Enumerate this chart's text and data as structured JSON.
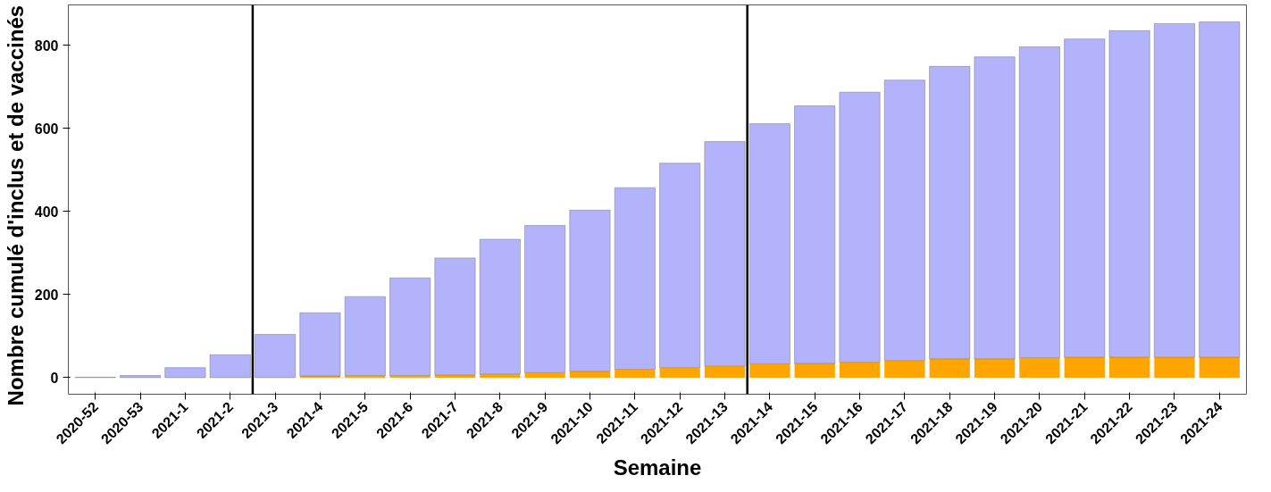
{
  "chart_data": {
    "type": "bar",
    "stacked": true,
    "xlabel": "Semaine",
    "ylabel": "Nombre cumulé d'inclus  et de  vaccinés",
    "categories": [
      "2020-52",
      "2020-53",
      "2021-1",
      "2021-2",
      "2021-3",
      "2021-4",
      "2021-5",
      "2021-6",
      "2021-7",
      "2021-8",
      "2021-9",
      "2021-10",
      "2021-11",
      "2021-12",
      "2021-13",
      "2021-14",
      "2021-15",
      "2021-16",
      "2021-17",
      "2021-18",
      "2021-19",
      "2021-20",
      "2021-21",
      "2021-22",
      "2021-23",
      "2021-24"
    ],
    "series": [
      {
        "color": "#ffa500",
        "values": [
          0,
          0,
          0,
          0,
          0,
          4,
          5,
          5,
          6,
          9,
          12,
          15,
          20,
          24,
          28,
          33,
          34,
          37,
          41,
          45,
          45,
          48,
          49,
          49,
          49,
          49
        ]
      },
      {
        "color": "#b3b3fc",
        "values": [
          1,
          5,
          24,
          55,
          104,
          152,
          190,
          235,
          282,
          324,
          354,
          388,
          437,
          492,
          540,
          578,
          620,
          650,
          675,
          704,
          727,
          748,
          766,
          786,
          803,
          807
        ]
      }
    ],
    "ylim": [
      -40,
      897
    ],
    "yticks": [
      0,
      200,
      400,
      600,
      800
    ],
    "grid": false
  }
}
